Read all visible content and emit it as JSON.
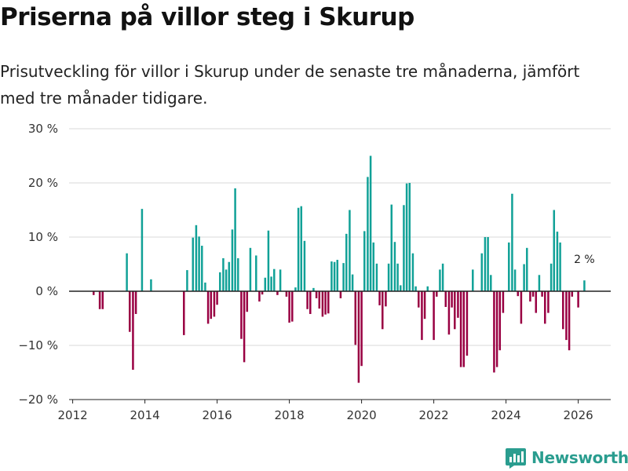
{
  "title": "Priserna på villor steg i Skurup",
  "subtitle_line1": "Prisutveckling för villor i Skurup under de senaste tre månaderna, jämfört",
  "subtitle_line2": "med tre månader tidigare.",
  "brand": "Newsworthy",
  "colors": {
    "positive": "#11a197",
    "negative": "#990042",
    "grid": "#d9d9d9",
    "axis": "#222222",
    "brand": "#2a9d8f"
  },
  "chart_data": {
    "type": "bar",
    "title": "Priserna på villor steg i Skurup",
    "xlabel": "",
    "ylabel": "",
    "x_unit": "year (decimal)",
    "xlim": [
      2011.9,
      2026.9
    ],
    "ylim": [
      -20,
      30
    ],
    "yticks": [
      -20,
      -10,
      0,
      10,
      20,
      30
    ],
    "ytick_labels": [
      "−20 %",
      "−10 %",
      "0 %",
      "10 %",
      "20 %",
      "30 %"
    ],
    "xticks": [
      2012,
      2014,
      2016,
      2018,
      2020,
      2022,
      2024,
      2026
    ],
    "xtick_labels": [
      "2012",
      "2014",
      "2016",
      "2018",
      "2020",
      "2022",
      "2024",
      "2026"
    ],
    "annotation": {
      "text": "2 %",
      "x": 2026.17,
      "y": 2
    },
    "x": [
      2012.58,
      2012.75,
      2012.83,
      2013.5,
      2013.58,
      2013.67,
      2013.75,
      2013.92,
      2014.17,
      2015.08,
      2015.17,
      2015.33,
      2015.42,
      2015.5,
      2015.58,
      2015.67,
      2015.75,
      2015.83,
      2015.92,
      2016.0,
      2016.08,
      2016.17,
      2016.25,
      2016.33,
      2016.42,
      2016.5,
      2016.58,
      2016.67,
      2016.75,
      2016.83,
      2016.92,
      2017.08,
      2017.17,
      2017.25,
      2017.33,
      2017.42,
      2017.5,
      2017.58,
      2017.67,
      2017.75,
      2017.92,
      2018.0,
      2018.08,
      2018.17,
      2018.25,
      2018.33,
      2018.42,
      2018.5,
      2018.58,
      2018.67,
      2018.75,
      2018.83,
      2018.92,
      2019.0,
      2019.08,
      2019.17,
      2019.25,
      2019.33,
      2019.42,
      2019.5,
      2019.58,
      2019.67,
      2019.75,
      2019.83,
      2019.92,
      2020.0,
      2020.08,
      2020.17,
      2020.25,
      2020.33,
      2020.42,
      2020.5,
      2020.58,
      2020.67,
      2020.75,
      2020.83,
      2020.92,
      2021.0,
      2021.08,
      2021.17,
      2021.25,
      2021.33,
      2021.42,
      2021.5,
      2021.58,
      2021.67,
      2021.75,
      2021.83,
      2022.0,
      2022.08,
      2022.17,
      2022.25,
      2022.33,
      2022.42,
      2022.5,
      2022.58,
      2022.67,
      2022.75,
      2022.83,
      2022.92,
      2023.08,
      2023.33,
      2023.42,
      2023.5,
      2023.58,
      2023.67,
      2023.75,
      2023.83,
      2023.92,
      2024.08,
      2024.17,
      2024.25,
      2024.33,
      2024.42,
      2024.5,
      2024.58,
      2024.67,
      2024.75,
      2024.83,
      2024.92,
      2025.0,
      2025.08,
      2025.17,
      2025.25,
      2025.33,
      2025.42,
      2025.5,
      2025.58,
      2025.67,
      2025.75,
      2025.83,
      2026.0,
      2026.17
    ],
    "values": [
      -0.7,
      -3.3,
      -3.3,
      7,
      -7.5,
      -14.5,
      -4.2,
      15.2,
      2.2,
      -8.1,
      3.9,
      9.9,
      12.2,
      10.1,
      8.4,
      1.6,
      -6,
      -5.1,
      -4.7,
      -2.5,
      3.5,
      6.1,
      4,
      5.4,
      11.4,
      19,
      6.1,
      -8.8,
      -13.1,
      -3.8,
      8,
      6.6,
      -1.9,
      -0.6,
      2.5,
      11.2,
      2.7,
      4.1,
      -0.7,
      4,
      -1,
      -5.8,
      -5.6,
      0.7,
      15.4,
      15.7,
      9.3,
      -3.3,
      -4.2,
      0.6,
      -1.3,
      -3.2,
      -4.7,
      -4.3,
      -4.1,
      5.5,
      5.4,
      5.8,
      -1.3,
      5.2,
      10.6,
      15,
      3.1,
      -9.9,
      -16.9,
      -13.8,
      11.1,
      21.1,
      25,
      9,
      5.1,
      -2.6,
      -7,
      -2.8,
      5.1,
      16,
      9.1,
      5.1,
      1.1,
      15.9,
      19.9,
      20,
      7,
      0.9,
      -3,
      -9,
      -5.1,
      0.9,
      -9,
      -1,
      4,
      5.1,
      -2.9,
      -8,
      -3,
      -7,
      -4.9,
      -14,
      -14,
      -11.9,
      4,
      7,
      10,
      10,
      3,
      -15,
      -14,
      -10.9,
      -4,
      9,
      18,
      4,
      -0.9,
      -6,
      5,
      8,
      -1.9,
      -1,
      -4,
      3,
      -1,
      -6,
      -4,
      5.1,
      15,
      11,
      9,
      -7,
      -9,
      -10.9,
      -1,
      -3,
      2
    ]
  }
}
